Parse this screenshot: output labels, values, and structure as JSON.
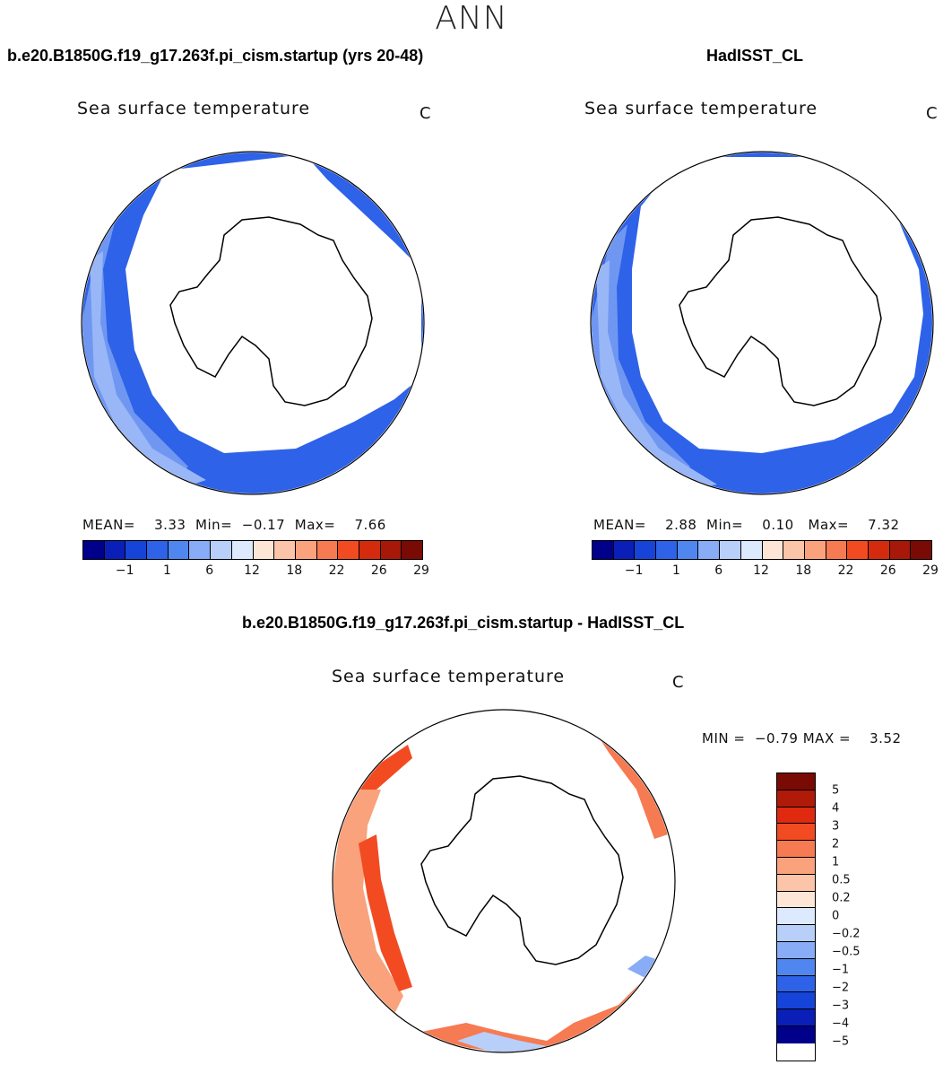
{
  "figure": {
    "season": "ANN",
    "units_label": "C",
    "colors": {
      "abs_scale": [
        "#00008b",
        "#0a1fb8",
        "#1644d8",
        "#2e62e8",
        "#4f86f0",
        "#88acf6",
        "#b8cffa",
        "#dde9fd",
        "#fde6d6",
        "#fcc4a8",
        "#f9a27c",
        "#f67a52",
        "#f24b22",
        "#d42a0e",
        "#a81808",
        "#7a0a04"
      ],
      "diff_scale": [
        "#7a0a04",
        "#b01a08",
        "#e02a10",
        "#f24b22",
        "#f67a52",
        "#f9a27c",
        "#fcc4a8",
        "#fde6d6",
        "#dde9fd",
        "#b8cffa",
        "#88acf6",
        "#4f86f0",
        "#2e62e8",
        "#1644d8",
        "#0a1fb8",
        "#00008b"
      ],
      "ocean_blue": "#2e62e8",
      "ocean_light": "#5b8af0",
      "diff_red": "#f24b22",
      "diff_light": "#f9a27c"
    }
  },
  "panels": [
    {
      "case_title": "b.e20.B1850G.f19_g17.263f.pi_cism.startup (yrs 20-48)",
      "var_title": "Sea surface temperature",
      "units": "C",
      "stats": {
        "mean_label": "MEAN=",
        "mean": "3.33",
        "min_label": "Min=",
        "min": "−0.17",
        "max_label": "Max=",
        "max": "7.66"
      },
      "colorbar_ticks": [
        "−1",
        "1",
        "6",
        "12",
        "18",
        "22",
        "26",
        "29"
      ]
    },
    {
      "case_title": "HadISST_CL",
      "var_title": "Sea surface temperature",
      "units": "C",
      "stats": {
        "mean_label": "MEAN=",
        "mean": "2.88",
        "min_label": "Min=",
        "min": "0.10",
        "max_label": "Max=",
        "max": "7.32"
      },
      "colorbar_ticks": [
        "−1",
        "1",
        "6",
        "12",
        "18",
        "22",
        "26",
        "29"
      ]
    }
  ],
  "diff_panel": {
    "case_title": "b.e20.B1850G.f19_g17.263f.pi_cism.startup - HadISST_CL",
    "var_title": "Sea surface temperature",
    "units": "C",
    "stats": {
      "min_label": "MIN =",
      "min": "−0.79",
      "max_label": "MAX =",
      "max": "3.52"
    },
    "colorbar_ticks": [
      "5",
      "4",
      "3",
      "2",
      "1",
      "0.5",
      "0.2",
      "0",
      "−0.2",
      "−0.5",
      "−1",
      "−2",
      "−3",
      "−4",
      "−5"
    ]
  }
}
